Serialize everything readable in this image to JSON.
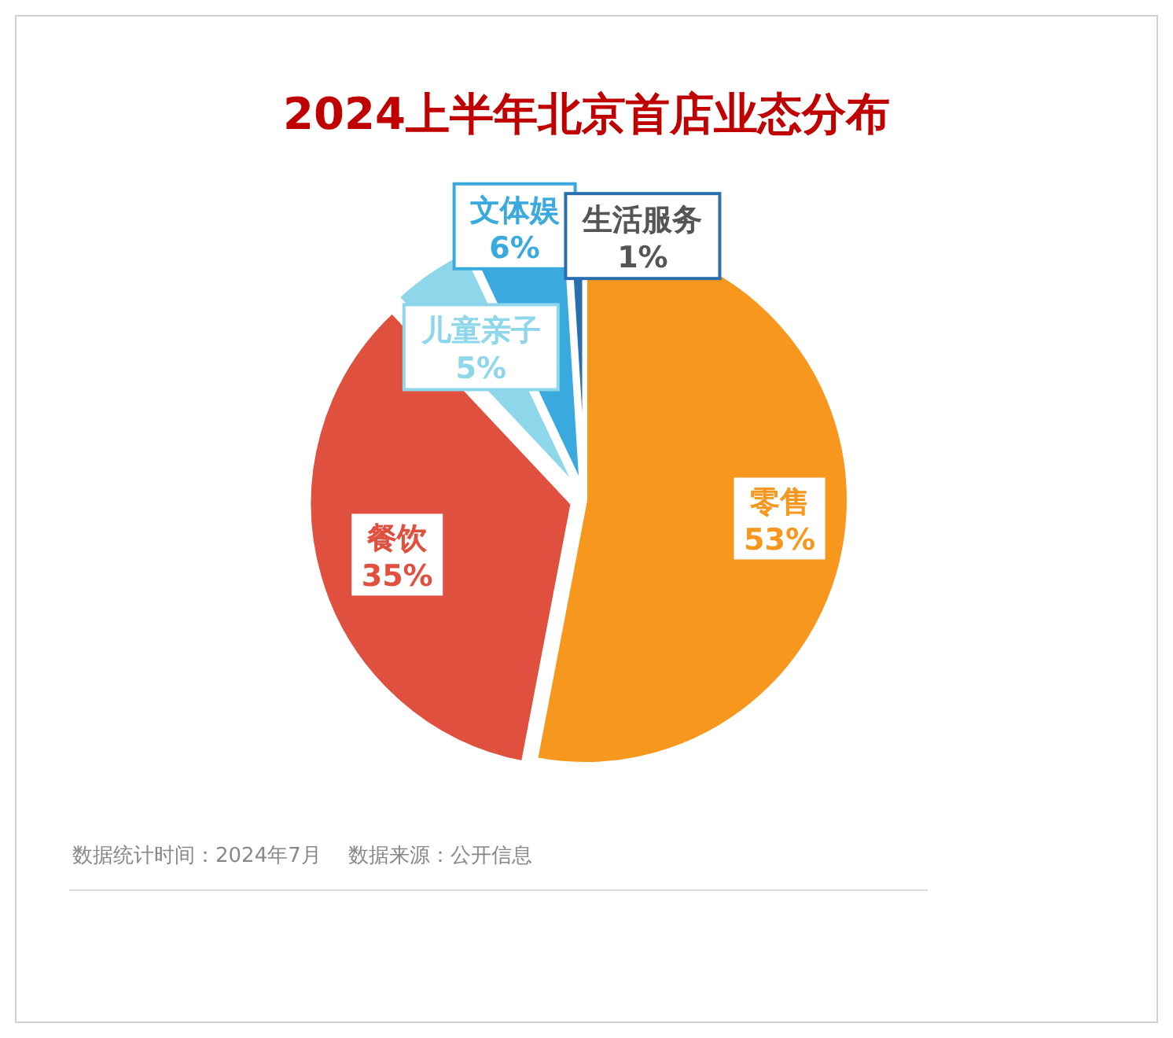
{
  "chart_data": {
    "type": "pie",
    "title": "2024上半年北京首店业态分布",
    "categories": [
      "零售",
      "餐饮",
      "儿童亲子",
      "文体娱",
      "生活服务"
    ],
    "values": [
      53,
      35,
      5,
      6,
      1
    ],
    "colors": [
      "#f7971e",
      "#e0503f",
      "#8ed6ea",
      "#3aa9de",
      "#2a6fb0"
    ],
    "value_labels": [
      "53%",
      "35%",
      "5%",
      "6%",
      "1%"
    ],
    "annotations": [
      "数据统计时间：2024年7月　 数据来源：公开信息"
    ]
  }
}
